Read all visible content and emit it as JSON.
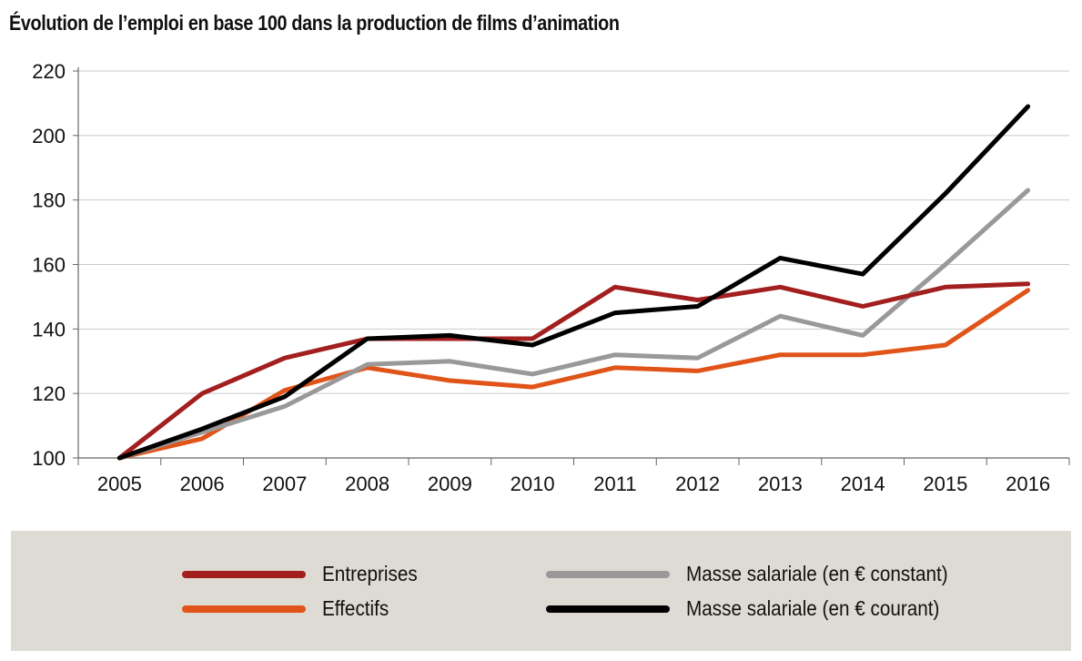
{
  "chart_data": {
    "type": "line",
    "title": "Évolution de l’emploi en base 100 dans la production de films d’animation",
    "x": [
      "2005",
      "2006",
      "2007",
      "2008",
      "2009",
      "2010",
      "2011",
      "2012",
      "2013",
      "2014",
      "2015",
      "2016"
    ],
    "ylim": [
      100,
      220
    ],
    "yticks": [
      "100",
      "120",
      "140",
      "160",
      "180",
      "200",
      "220"
    ],
    "grid": true,
    "legend_placement": "bottom",
    "series": [
      {
        "name": "Entreprises",
        "color": "#a31f1f",
        "values": [
          100,
          120,
          131,
          137,
          137,
          137,
          153,
          149,
          153,
          147,
          153,
          154
        ]
      },
      {
        "name": "Effectifs",
        "color": "#e05419",
        "values": [
          100,
          106,
          121,
          128,
          124,
          122,
          128,
          127,
          132,
          132,
          135,
          152
        ]
      },
      {
        "name": "Masse salariale (en € constant)",
        "color": "#9a9898",
        "values": [
          100,
          108,
          116,
          129,
          130,
          126,
          132,
          131,
          144,
          138,
          160,
          183
        ]
      },
      {
        "name": "Masse salariale (en € courant)",
        "color": "#000000",
        "values": [
          100,
          109,
          119,
          137,
          138,
          135,
          145,
          147,
          162,
          157,
          182,
          209
        ]
      }
    ]
  }
}
